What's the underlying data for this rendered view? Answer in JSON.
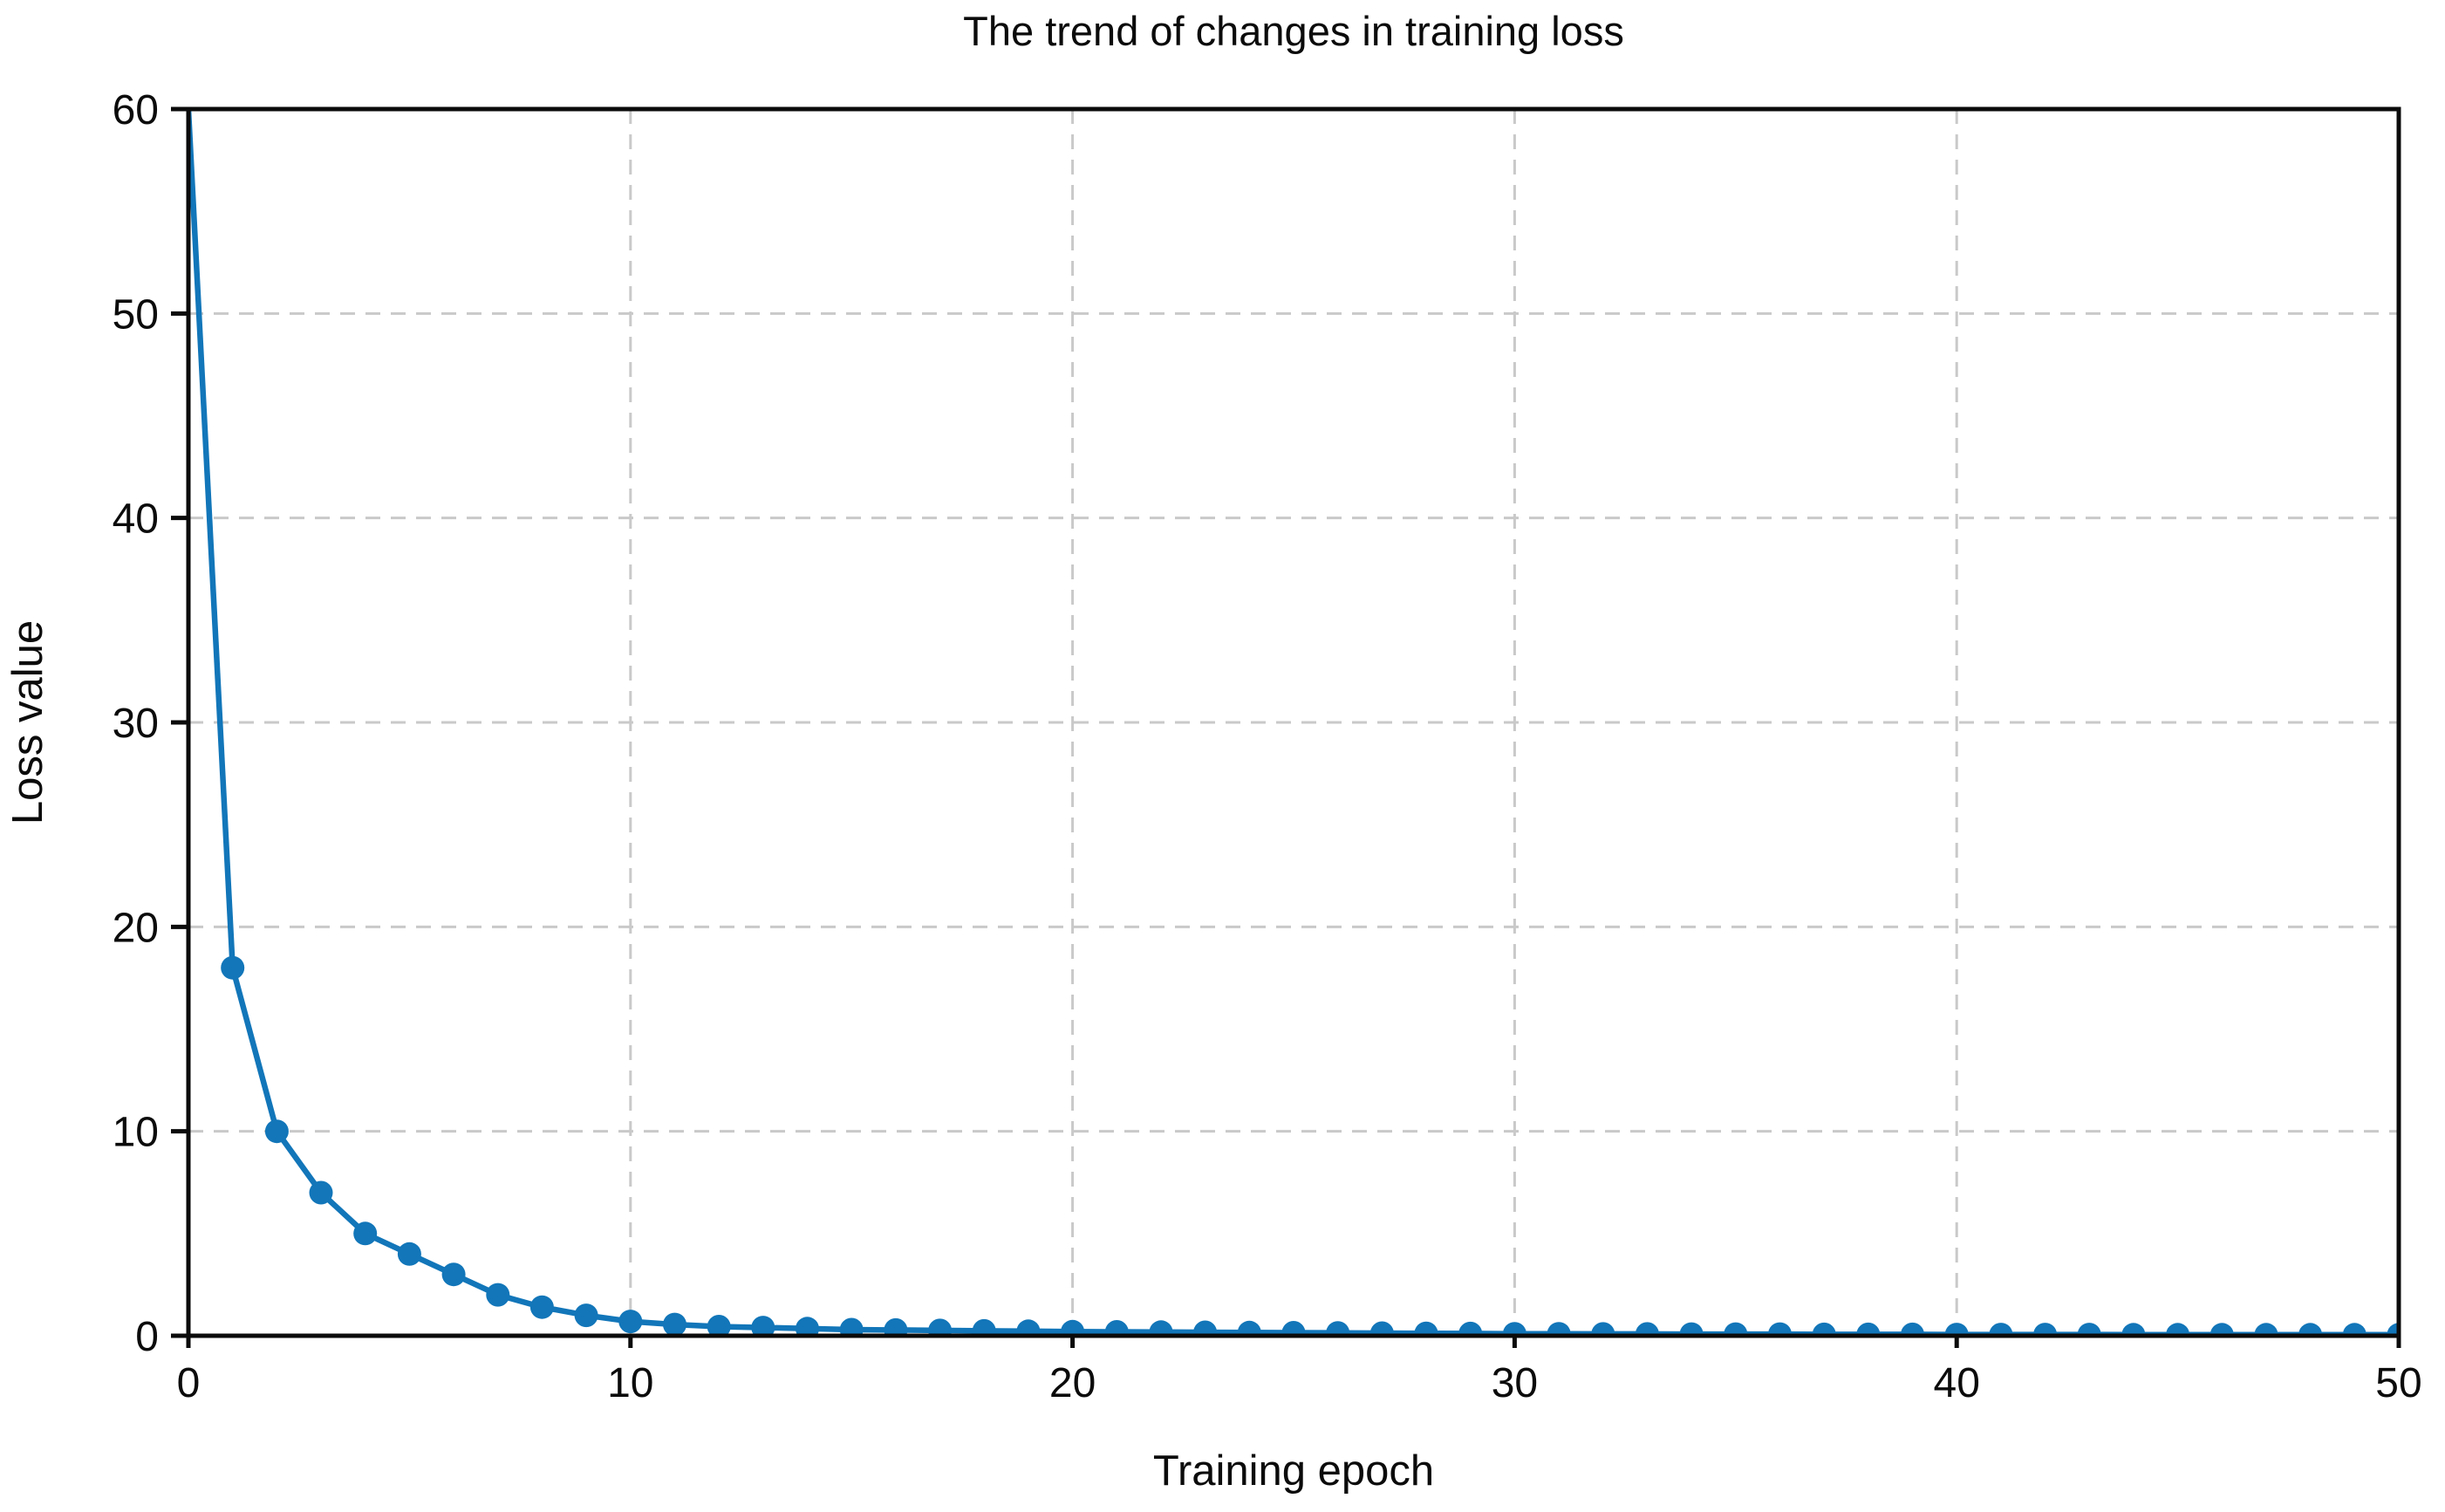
{
  "figure": {
    "title": "The trend of changes in training loss",
    "xlabel": "Training epoch",
    "ylabel": "Loss value"
  },
  "chart_data": {
    "type": "line",
    "title": "The trend of changes in training loss",
    "xlabel": "Training epoch",
    "ylabel": "Loss value",
    "xlim": [
      0,
      50
    ],
    "ylim": [
      0,
      60
    ],
    "xticks": [
      0,
      10,
      20,
      30,
      40,
      50
    ],
    "yticks": [
      0,
      10,
      20,
      30,
      40,
      50,
      60
    ],
    "grid": true,
    "grid_style": "dashed",
    "legend_position": "none",
    "series": [
      {
        "name": "training loss",
        "marker": "circle",
        "x": [
          0,
          1,
          2,
          3,
          4,
          5,
          6,
          7,
          8,
          9,
          10,
          11,
          12,
          13,
          14,
          15,
          16,
          17,
          18,
          19,
          20,
          21,
          22,
          23,
          24,
          25,
          26,
          27,
          28,
          29,
          30,
          31,
          32,
          33,
          34,
          35,
          36,
          37,
          38,
          39,
          40,
          41,
          42,
          43,
          44,
          45,
          46,
          47,
          48,
          49,
          50
        ],
        "y": [
          60,
          18,
          10,
          7,
          5,
          4,
          3,
          2,
          1.4,
          1.0,
          0.7,
          0.55,
          0.45,
          0.4,
          0.35,
          0.3,
          0.28,
          0.26,
          0.24,
          0.22,
          0.2,
          0.19,
          0.18,
          0.17,
          0.16,
          0.15,
          0.14,
          0.13,
          0.12,
          0.11,
          0.1,
          0.1,
          0.09,
          0.09,
          0.08,
          0.08,
          0.08,
          0.07,
          0.07,
          0.07,
          0.06,
          0.06,
          0.06,
          0.06,
          0.05,
          0.05,
          0.05,
          0.05,
          0.05,
          0.05,
          0.05
        ]
      }
    ]
  },
  "colors": {
    "line": "#1276b9",
    "marker": "#1276b9",
    "grid": "#c9c9c9",
    "spine": "#0b0b0b",
    "text": "#0b0b0b",
    "background": "#ffffff"
  }
}
